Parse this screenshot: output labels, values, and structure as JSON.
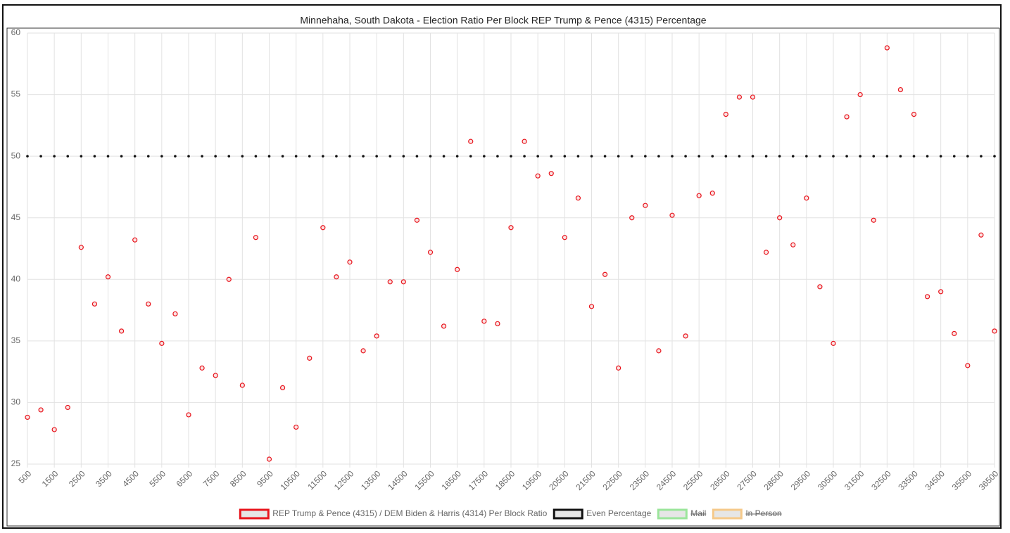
{
  "chart_data": {
    "type": "scatter",
    "title": "Minnehaha, South Dakota - Election Ratio Per Block REP Trump & Pence (4315) Percentage",
    "x": [
      500,
      1000,
      1500,
      2000,
      2500,
      3000,
      3500,
      4000,
      4500,
      5000,
      5500,
      6000,
      6500,
      7000,
      7500,
      8000,
      8500,
      9000,
      9500,
      10000,
      10500,
      11000,
      11500,
      12000,
      12500,
      13000,
      13500,
      14000,
      14500,
      15000,
      15500,
      16000,
      16500,
      17000,
      17500,
      18000,
      18500,
      19000,
      19500,
      20000,
      20500,
      21000,
      21500,
      22000,
      22500,
      23000,
      23500,
      24000,
      24500,
      25000,
      25500,
      26000,
      26500,
      27000,
      27500,
      28000,
      28500,
      29000,
      29500,
      30000,
      30500,
      31000,
      31500,
      32000,
      32500,
      33000,
      33500,
      34000,
      34500,
      35000,
      35500,
      36000,
      36500
    ],
    "series": [
      {
        "name": "REP Trump & Pence (4315) / DEM Biden & Harris (4314) Per Block Ratio",
        "color": "#e8141c",
        "values": [
          28.8,
          29.4,
          27.8,
          29.6,
          42.6,
          38.0,
          40.2,
          35.8,
          43.2,
          38.0,
          34.8,
          37.2,
          29.0,
          32.8,
          32.2,
          40.0,
          31.4,
          43.4,
          25.4,
          31.2,
          28.0,
          33.6,
          44.2,
          40.2,
          41.4,
          34.2,
          35.4,
          39.8,
          39.8,
          44.8,
          42.2,
          36.2,
          40.8,
          51.2,
          36.6,
          36.4,
          44.2,
          51.2,
          48.4,
          48.6,
          43.4,
          46.6,
          37.8,
          40.4,
          32.8,
          45.0,
          46.0,
          34.2,
          45.2,
          35.4,
          46.8,
          47.0,
          53.4,
          54.8,
          54.8,
          42.2,
          45.0,
          42.8,
          46.6,
          39.4,
          34.8,
          53.2,
          55.0,
          44.8,
          58.8,
          55.4,
          53.4,
          38.6,
          39.0,
          35.6,
          33.0,
          43.6,
          35.8
        ]
      },
      {
        "name": "Even Percentage",
        "color": "#111111",
        "values": [
          50,
          50,
          50,
          50,
          50,
          50,
          50,
          50,
          50,
          50,
          50,
          50,
          50,
          50,
          50,
          50,
          50,
          50,
          50,
          50,
          50,
          50,
          50,
          50,
          50,
          50,
          50,
          50,
          50,
          50,
          50,
          50,
          50,
          50,
          50,
          50,
          50,
          50,
          50,
          50,
          50,
          50,
          50,
          50,
          50,
          50,
          50,
          50,
          50,
          50,
          50,
          50,
          50,
          50,
          50,
          50,
          50,
          50,
          50,
          50,
          50,
          50,
          50,
          50,
          50,
          50,
          50,
          50,
          50,
          50,
          50,
          50,
          50
        ]
      },
      {
        "name": "Mail",
        "color": "#9be59b",
        "hidden": true
      },
      {
        "name": "In Person",
        "color": "#f5c98a",
        "hidden": true
      }
    ],
    "xlim": [
      500,
      36500
    ],
    "xticks": [
      500,
      1500,
      2500,
      3500,
      4500,
      5500,
      6500,
      7500,
      8500,
      9500,
      10500,
      11500,
      12500,
      13500,
      14500,
      15500,
      16500,
      17500,
      18500,
      19500,
      20500,
      21500,
      22500,
      23500,
      24500,
      25500,
      26500,
      27500,
      28500,
      29500,
      30500,
      31500,
      32500,
      33500,
      34500,
      35500,
      36500
    ],
    "ylim": [
      25,
      60
    ],
    "yticks": [
      25,
      30,
      35,
      40,
      45,
      50,
      55,
      60
    ],
    "grid": true,
    "legend": "bottom"
  }
}
